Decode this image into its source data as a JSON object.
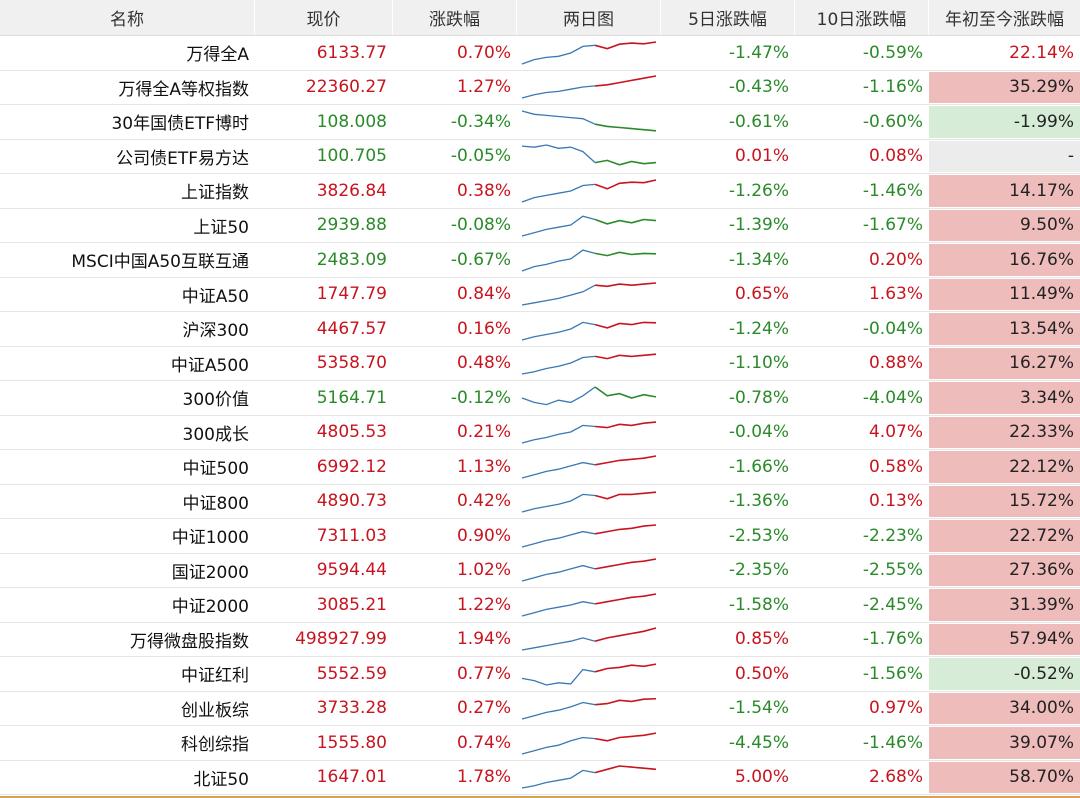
{
  "header": {
    "name": "名称",
    "price": "现价",
    "change": "涨跌幅",
    "chart": "两日图",
    "d5": "5日涨跌幅",
    "d10": "10日涨跌幅",
    "ytd": "年初至今涨跌幅"
  },
  "colors": {
    "up": "#c8141e",
    "down": "#2a8a2a",
    "blue_line": "#3a78b5",
    "ytd_up_bg": "#efbcbc",
    "ytd_down_bg": "#d6ecd6"
  },
  "rows": [
    {
      "name": "万得全A",
      "price": "6133.77",
      "change": "0.70%",
      "d5": "-1.47%",
      "d10": "-0.59%",
      "ytd": "22.14%",
      "ytd_style": "plain-up",
      "shape": [
        0,
        0.2,
        0.3,
        0.35,
        0.5,
        0.8,
        0.85,
        0.7,
        0.9,
        0.95,
        0.92,
        1
      ]
    },
    {
      "name": "万得全A等权指数",
      "price": "22360.27",
      "change": "1.27%",
      "d5": "-0.43%",
      "d10": "-1.16%",
      "ytd": "35.29%",
      "ytd_style": "up",
      "shape": [
        0,
        0.15,
        0.25,
        0.3,
        0.4,
        0.5,
        0.55,
        0.6,
        0.7,
        0.8,
        0.9,
        1
      ]
    },
    {
      "name": "30年国债ETF博时",
      "price": "108.008",
      "change": "-0.34%",
      "d5": "-0.61%",
      "d10": "-0.60%",
      "ytd": "-1.99%",
      "ytd_style": "down",
      "shape": [
        1,
        0.85,
        0.8,
        0.75,
        0.7,
        0.65,
        0.4,
        0.3,
        0.25,
        0.2,
        0.15,
        0.1
      ]
    },
    {
      "name": "公司债ETF易方达",
      "price": "100.705",
      "change": "-0.05%",
      "d5": "0.01%",
      "d10": "0.08%",
      "ytd": "-",
      "ytd_style": "flat",
      "shape": [
        0.95,
        0.9,
        1,
        0.85,
        0.9,
        0.7,
        0.2,
        0.3,
        0.1,
        0.25,
        0.15,
        0.2
      ]
    },
    {
      "name": "上证指数",
      "price": "3826.84",
      "change": "0.38%",
      "d5": "-1.26%",
      "d10": "-1.46%",
      "ytd": "14.17%",
      "ytd_style": "up",
      "shape": [
        0,
        0.2,
        0.3,
        0.4,
        0.5,
        0.75,
        0.8,
        0.6,
        0.85,
        0.9,
        0.88,
        1
      ]
    },
    {
      "name": "上证50",
      "price": "2939.88",
      "change": "-0.08%",
      "d5": "-1.39%",
      "d10": "-1.67%",
      "ytd": "9.50%",
      "ytd_style": "up",
      "shape": [
        0,
        0.15,
        0.3,
        0.4,
        0.5,
        0.9,
        0.75,
        0.55,
        0.7,
        0.6,
        0.75,
        0.7
      ]
    },
    {
      "name": "MSCI中国A50互联互通",
      "price": "2483.09",
      "change": "-0.67%",
      "d5": "-1.34%",
      "d10": "0.20%",
      "ytd": "16.76%",
      "ytd_style": "up",
      "shape": [
        0,
        0.2,
        0.3,
        0.45,
        0.55,
        0.95,
        0.8,
        0.7,
        0.85,
        0.75,
        0.8,
        0.78
      ]
    },
    {
      "name": "中证A50",
      "price": "1747.79",
      "change": "0.84%",
      "d5": "0.65%",
      "d10": "1.63%",
      "ytd": "11.49%",
      "ytd_style": "up",
      "shape": [
        0,
        0.1,
        0.2,
        0.3,
        0.45,
        0.6,
        0.9,
        0.85,
        0.95,
        0.9,
        0.95,
        1
      ]
    },
    {
      "name": "沪深300",
      "price": "4467.57",
      "change": "0.16%",
      "d5": "-1.24%",
      "d10": "-0.04%",
      "ytd": "13.54%",
      "ytd_style": "up",
      "shape": [
        0,
        0.15,
        0.25,
        0.35,
        0.5,
        0.8,
        0.7,
        0.55,
        0.75,
        0.7,
        0.8,
        0.78
      ]
    },
    {
      "name": "中证A500",
      "price": "5358.70",
      "change": "0.48%",
      "d5": "-1.10%",
      "d10": "0.88%",
      "ytd": "16.27%",
      "ytd_style": "up",
      "shape": [
        0,
        0.1,
        0.25,
        0.35,
        0.5,
        0.75,
        0.8,
        0.7,
        0.85,
        0.8,
        0.85,
        0.9
      ]
    },
    {
      "name": "300价值",
      "price": "5164.71",
      "change": "-0.12%",
      "d5": "-0.78%",
      "d10": "-4.04%",
      "ytd": "3.34%",
      "ytd_style": "up",
      "shape": [
        0.5,
        0.3,
        0.2,
        0.4,
        0.3,
        0.6,
        1,
        0.6,
        0.7,
        0.5,
        0.65,
        0.55
      ]
    },
    {
      "name": "300成长",
      "price": "4805.53",
      "change": "0.21%",
      "d5": "-0.04%",
      "d10": "4.07%",
      "ytd": "22.33%",
      "ytd_style": "up",
      "shape": [
        0,
        0.15,
        0.25,
        0.4,
        0.5,
        0.8,
        0.75,
        0.7,
        0.85,
        0.8,
        0.9,
        0.95
      ]
    },
    {
      "name": "中证500",
      "price": "6992.12",
      "change": "1.13%",
      "d5": "-1.66%",
      "d10": "0.58%",
      "ytd": "22.12%",
      "ytd_style": "up",
      "shape": [
        0,
        0.15,
        0.3,
        0.4,
        0.55,
        0.7,
        0.6,
        0.7,
        0.8,
        0.85,
        0.9,
        1
      ]
    },
    {
      "name": "中证800",
      "price": "4890.73",
      "change": "0.42%",
      "d5": "-1.36%",
      "d10": "0.13%",
      "ytd": "15.72%",
      "ytd_style": "up",
      "shape": [
        0,
        0.15,
        0.25,
        0.35,
        0.5,
        0.8,
        0.75,
        0.6,
        0.8,
        0.8,
        0.85,
        0.9
      ]
    },
    {
      "name": "中证1000",
      "price": "7311.03",
      "change": "0.90%",
      "d5": "-2.53%",
      "d10": "-2.23%",
      "ytd": "22.72%",
      "ytd_style": "up",
      "shape": [
        0,
        0.15,
        0.3,
        0.4,
        0.55,
        0.7,
        0.6,
        0.7,
        0.8,
        0.85,
        0.95,
        1
      ]
    },
    {
      "name": "国证2000",
      "price": "9594.44",
      "change": "1.02%",
      "d5": "-2.35%",
      "d10": "-2.55%",
      "ytd": "27.36%",
      "ytd_style": "up",
      "shape": [
        0,
        0.15,
        0.3,
        0.4,
        0.55,
        0.7,
        0.55,
        0.65,
        0.75,
        0.85,
        0.9,
        1
      ]
    },
    {
      "name": "中证2000",
      "price": "3085.21",
      "change": "1.22%",
      "d5": "-1.58%",
      "d10": "-2.45%",
      "ytd": "31.39%",
      "ytd_style": "up",
      "shape": [
        0,
        0.15,
        0.3,
        0.4,
        0.5,
        0.65,
        0.55,
        0.65,
        0.75,
        0.85,
        0.9,
        1
      ]
    },
    {
      "name": "万得微盘股指数",
      "price": "498927.99",
      "change": "1.94%",
      "d5": "0.85%",
      "d10": "-1.76%",
      "ytd": "57.94%",
      "ytd_style": "up",
      "shape": [
        0,
        0.1,
        0.2,
        0.3,
        0.4,
        0.55,
        0.4,
        0.55,
        0.65,
        0.75,
        0.85,
        1
      ]
    },
    {
      "name": "中证红利",
      "price": "5552.59",
      "change": "0.77%",
      "d5": "0.50%",
      "d10": "-1.56%",
      "ytd": "-0.52%",
      "ytd_style": "down",
      "shape": [
        0.3,
        0.2,
        0,
        0.1,
        0.05,
        0.7,
        0.6,
        0.75,
        0.8,
        0.9,
        0.85,
        0.95
      ]
    },
    {
      "name": "创业板综",
      "price": "3733.28",
      "change": "0.27%",
      "d5": "-1.54%",
      "d10": "0.97%",
      "ytd": "34.00%",
      "ytd_style": "up",
      "shape": [
        0,
        0.15,
        0.3,
        0.4,
        0.55,
        0.75,
        0.65,
        0.7,
        0.85,
        0.8,
        0.9,
        0.92
      ]
    },
    {
      "name": "科创综指",
      "price": "1555.80",
      "change": "0.74%",
      "d5": "-4.45%",
      "d10": "-1.46%",
      "ytd": "39.07%",
      "ytd_style": "up",
      "shape": [
        0,
        0.15,
        0.3,
        0.4,
        0.6,
        0.75,
        0.7,
        0.6,
        0.75,
        0.8,
        0.85,
        0.95
      ]
    },
    {
      "name": "北证50",
      "price": "1647.01",
      "change": "1.78%",
      "d5": "5.00%",
      "d10": "2.68%",
      "ytd": "58.70%",
      "ytd_style": "up",
      "shape": [
        0,
        0.1,
        0.25,
        0.35,
        0.45,
        0.8,
        0.7,
        0.85,
        1,
        0.95,
        0.9,
        0.85
      ]
    }
  ]
}
